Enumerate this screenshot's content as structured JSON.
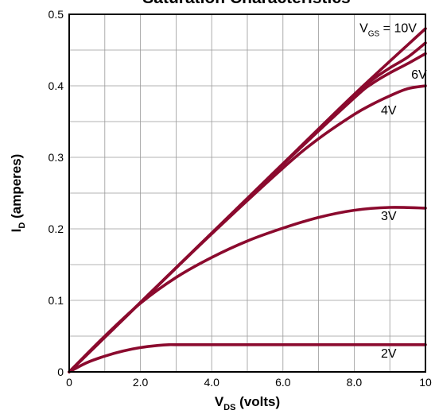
{
  "chart_data": {
    "type": "line",
    "title": "Saturation Characteristics",
    "xlabel": {
      "main": "V",
      "sub": "DS",
      "rest": " (volts)"
    },
    "ylabel": {
      "main": "I",
      "sub": "D",
      "rest": " (amperes)"
    },
    "xlim": [
      0,
      10
    ],
    "ylim": [
      0,
      0.5
    ],
    "x_ticks": [
      0,
      2,
      4,
      6,
      8,
      10
    ],
    "x_tick_labels": [
      "0",
      "2.0",
      "4.0",
      "6.0",
      "8.0",
      "10"
    ],
    "y_ticks": [
      0,
      0.1,
      0.2,
      0.3,
      0.4,
      0.5
    ],
    "y_tick_labels": [
      "0",
      "0.1",
      "0.2",
      "0.3",
      "0.4",
      "0.5"
    ],
    "grid_step_x": 1,
    "grid_step_y": 0.05,
    "grid": true,
    "line_color": "#8b0a2e",
    "series": [
      {
        "name": "10V",
        "label_prefix": "V",
        "label_sub": "GS",
        "label_suffix": " = 10V",
        "x": [
          0,
          2,
          4,
          6,
          8,
          10
        ],
        "y": [
          0,
          0.097,
          0.194,
          0.291,
          0.388,
          0.48
        ]
      },
      {
        "name": "6V",
        "x": [
          0,
          2,
          4,
          6,
          8,
          8.5,
          9,
          9.5,
          10
        ],
        "y": [
          0,
          0.097,
          0.194,
          0.291,
          0.386,
          0.408,
          0.425,
          0.44,
          0.46
        ]
      },
      {
        "name": "6V",
        "x": [
          0,
          2,
          4,
          6,
          8,
          8.5,
          9,
          9.5,
          10
        ],
        "y": [
          0,
          0.097,
          0.194,
          0.29,
          0.383,
          0.403,
          0.418,
          0.431,
          0.445
        ]
      },
      {
        "name": "4V",
        "x": [
          0,
          2,
          4,
          6,
          7,
          8,
          8.5,
          9,
          9.5,
          10
        ],
        "y": [
          0,
          0.097,
          0.193,
          0.285,
          0.326,
          0.36,
          0.374,
          0.386,
          0.396,
          0.4
        ]
      },
      {
        "name": "3V",
        "x": [
          0,
          1,
          2,
          3,
          4,
          5,
          6,
          7,
          8,
          9,
          10
        ],
        "y": [
          0,
          0.05,
          0.096,
          0.132,
          0.16,
          0.183,
          0.201,
          0.216,
          0.226,
          0.23,
          0.229
        ]
      },
      {
        "name": "2V",
        "x": [
          0,
          0.5,
          1,
          1.5,
          2,
          2.5,
          2.8,
          3,
          4,
          6,
          8,
          10
        ],
        "y": [
          0,
          0.013,
          0.022,
          0.029,
          0.034,
          0.037,
          0.038,
          0.038,
          0.038,
          0.038,
          0.038,
          0.038
        ]
      }
    ],
    "curve_labels": [
      {
        "text": "6V",
        "x": 9.6,
        "y": 0.41
      },
      {
        "text": "4V",
        "x": 8.75,
        "y": 0.36
      },
      {
        "text": "3V",
        "x": 8.75,
        "y": 0.212
      },
      {
        "text": "2V",
        "x": 8.75,
        "y": 0.02
      }
    ]
  }
}
